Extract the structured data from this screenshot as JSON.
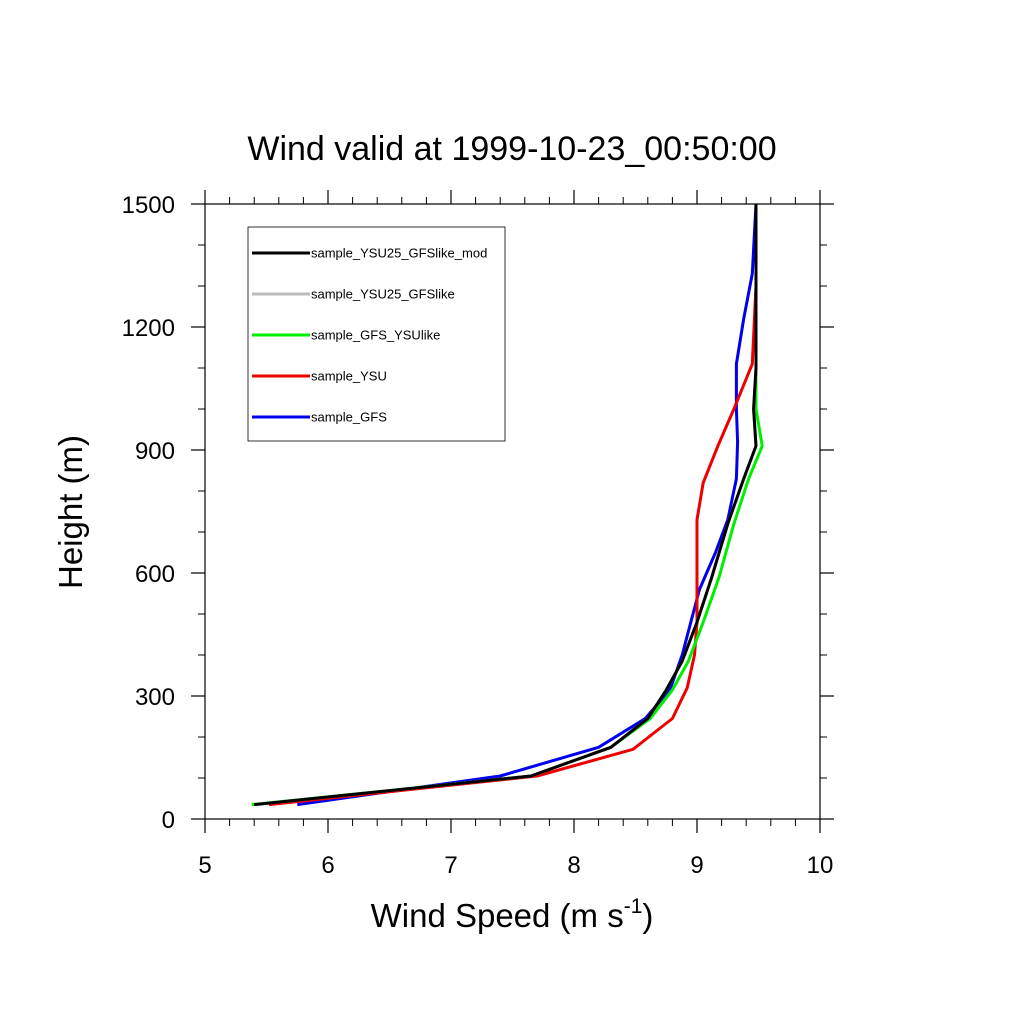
{
  "chart_data": {
    "type": "line",
    "title": "Wind valid at 1999-10-23_00:50:00",
    "xlabel": "Wind Speed (m s",
    "xlabel_sup": "-1",
    "xlabel_close": ")",
    "ylabel": "Height (m)",
    "xlim": [
      5,
      10
    ],
    "ylim": [
      0,
      1500
    ],
    "xticks": [
      "5",
      "6",
      "7",
      "8",
      "9",
      "10"
    ],
    "yticks": [
      "0",
      "300",
      "600",
      "900",
      "1200",
      "1500"
    ],
    "grid": false,
    "legend_position": "top-left",
    "series": [
      {
        "name": "sample_YSU25_GFSlike_mod",
        "color": "#000000",
        "points": [
          [
            5.4,
            35
          ],
          [
            7.65,
            105
          ],
          [
            8.3,
            175
          ],
          [
            8.6,
            245
          ],
          [
            8.75,
            315
          ],
          [
            8.88,
            385
          ],
          [
            9.0,
            480
          ],
          [
            9.12,
            590
          ],
          [
            9.25,
            720
          ],
          [
            9.38,
            830
          ],
          [
            9.48,
            910
          ],
          [
            9.46,
            1000
          ],
          [
            9.48,
            1100
          ],
          [
            9.48,
            1300
          ],
          [
            9.48,
            1500
          ]
        ]
      },
      {
        "name": "sample_YSU25_GFSlike",
        "color": "#bbbbbb",
        "points": [
          [
            5.4,
            35
          ],
          [
            7.65,
            105
          ],
          [
            8.3,
            175
          ],
          [
            8.6,
            245
          ],
          [
            8.75,
            315
          ],
          [
            8.88,
            385
          ],
          [
            9.0,
            480
          ],
          [
            9.12,
            590
          ],
          [
            9.25,
            720
          ],
          [
            9.38,
            830
          ],
          [
            9.48,
            910
          ],
          [
            9.46,
            1000
          ],
          [
            9.48,
            1100
          ],
          [
            9.48,
            1300
          ],
          [
            9.48,
            1500
          ]
        ]
      },
      {
        "name": "sample_GFS_YSUlike",
        "color": "#00ee00",
        "points": [
          [
            5.38,
            35
          ],
          [
            7.65,
            105
          ],
          [
            8.3,
            175
          ],
          [
            8.62,
            245
          ],
          [
            8.8,
            315
          ],
          [
            8.93,
            385
          ],
          [
            9.05,
            480
          ],
          [
            9.18,
            590
          ],
          [
            9.3,
            720
          ],
          [
            9.42,
            830
          ],
          [
            9.53,
            910
          ],
          [
            9.48,
            1000
          ],
          [
            9.48,
            1100
          ],
          [
            9.48,
            1300
          ],
          [
            9.48,
            1500
          ]
        ]
      },
      {
        "name": "sample_YSU",
        "color": "#ee0000",
        "points": [
          [
            5.52,
            35
          ],
          [
            7.7,
            105
          ],
          [
            8.48,
            170
          ],
          [
            8.8,
            245
          ],
          [
            8.92,
            320
          ],
          [
            8.98,
            400
          ],
          [
            9.0,
            480
          ],
          [
            9.0,
            600
          ],
          [
            9.0,
            730
          ],
          [
            9.05,
            820
          ],
          [
            9.17,
            910
          ],
          [
            9.3,
            1000
          ],
          [
            9.45,
            1110
          ],
          [
            9.48,
            1300
          ],
          [
            9.48,
            1500
          ]
        ]
      },
      {
        "name": "sample_GFS",
        "color": "#0000ee",
        "points": [
          [
            5.75,
            35
          ],
          [
            7.4,
            105
          ],
          [
            8.2,
            175
          ],
          [
            8.58,
            245
          ],
          [
            8.78,
            315
          ],
          [
            8.88,
            400
          ],
          [
            8.95,
            480
          ],
          [
            9.02,
            560
          ],
          [
            9.15,
            650
          ],
          [
            9.25,
            730
          ],
          [
            9.32,
            830
          ],
          [
            9.33,
            920
          ],
          [
            9.32,
            1000
          ],
          [
            9.32,
            1110
          ],
          [
            9.38,
            1220
          ],
          [
            9.45,
            1330
          ],
          [
            9.48,
            1500
          ]
        ]
      }
    ]
  }
}
